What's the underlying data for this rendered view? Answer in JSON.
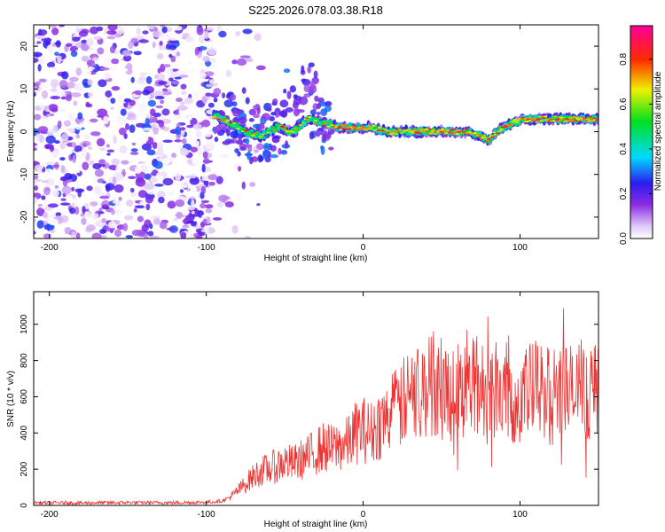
{
  "figure_title": "S225.2026.078.03.38.R18",
  "chart_data": [
    {
      "type": "heatmap",
      "title": "S225.2026.078.03.38.R18",
      "xlabel": "Height of straight line (km)",
      "ylabel": "Frequency (Hz)",
      "xlim": [
        -210,
        150
      ],
      "ylim": [
        -25,
        25
      ],
      "xticks": [
        -200,
        -100,
        0,
        100
      ],
      "yticks": [
        -20,
        -10,
        0,
        10,
        20
      ],
      "colorbar": {
        "label": "Normalized spectral amplitude",
        "range": [
          0.0,
          0.95
        ],
        "ticks": [
          0.0,
          0.2,
          0.4,
          0.6,
          0.8
        ],
        "colormap": "rainbow (white-violet-blue-cyan-green-yellow-red-pink)"
      },
      "description_of_signal": "noise at heights below -95 km; narrow-band signal centered near 0-5 Hz from -95 km to 150 km",
      "ridge_frequency": {
        "x": [
          -95,
          -85,
          -75,
          -65,
          -55,
          -45,
          -35,
          -25,
          -15,
          -5,
          5,
          15,
          25,
          35,
          45,
          55,
          65,
          75,
          80,
          85,
          95,
          105,
          115,
          125,
          135,
          145
        ],
        "y": [
          4,
          2,
          0,
          -1,
          1,
          0,
          3,
          2,
          1,
          1,
          1,
          0,
          0,
          0,
          0,
          0,
          0,
          -1,
          -2,
          0,
          2,
          3,
          3,
          3,
          3,
          3
        ]
      }
    },
    {
      "type": "line",
      "xlabel": "Height of straight line (km)",
      "ylabel": "SNR (10 * v/v)",
      "xlim": [
        -210,
        150
      ],
      "ylim": [
        0,
        1180
      ],
      "xticks": [
        -200,
        -100,
        0,
        100
      ],
      "yticks": [
        0,
        200,
        400,
        600,
        800,
        1000
      ],
      "series": [
        {
          "name": "SNR",
          "color": "#ee3333",
          "x": [
            -210,
            -200,
            -190,
            -180,
            -170,
            -160,
            -150,
            -140,
            -130,
            -120,
            -110,
            -100,
            -95,
            -90,
            -85,
            -80,
            -75,
            -70,
            -65,
            -60,
            -55,
            -50,
            -45,
            -40,
            -35,
            -30,
            -25,
            -20,
            -15,
            -10,
            -5,
            0,
            5,
            10,
            15,
            20,
            25,
            30,
            35,
            40,
            45,
            50,
            55,
            60,
            65,
            70,
            75,
            80,
            85,
            90,
            95,
            100,
            105,
            110,
            115,
            120,
            125,
            130,
            135,
            140,
            145,
            150
          ],
          "y": [
            15,
            14,
            15,
            13,
            15,
            14,
            16,
            15,
            15,
            15,
            16,
            18,
            20,
            25,
            45,
            80,
            120,
            160,
            190,
            200,
            220,
            240,
            230,
            250,
            270,
            300,
            320,
            310,
            330,
            340,
            400,
            420,
            400,
            450,
            480,
            520,
            560,
            600,
            620,
            640,
            680,
            650,
            620,
            640,
            640,
            660,
            660,
            600,
            680,
            640,
            600,
            580,
            620,
            640,
            620,
            600,
            640,
            640,
            600,
            620,
            640,
            600
          ]
        }
      ]
    }
  ]
}
